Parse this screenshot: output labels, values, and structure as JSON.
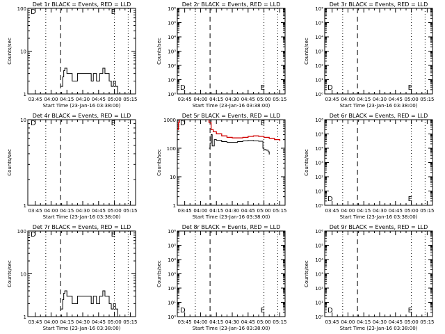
{
  "figure": {
    "xlabel": "Start Time (23-Jan-16 03:38:00)",
    "ylabel": "Counts/sec",
    "x_ticks": [
      "03:45",
      "04:00",
      "04:15",
      "04:30",
      "04:45",
      "05:00",
      "05:15"
    ],
    "marker_d": "D",
    "marker_e": "E",
    "line_colors": {
      "events": "#000000",
      "lld": "#d00000"
    }
  },
  "chart_data": [
    {
      "title": "Det 1r BLACK = Events, RED = LLD",
      "type": "line",
      "scale": "log",
      "ylim": [
        1,
        100
      ],
      "y_ticks": [
        "1",
        "10",
        "100"
      ],
      "y_tick_values": [
        1,
        10,
        100
      ],
      "dotted_x": [
        "03:55",
        "05:00",
        "05:13"
      ],
      "dashed_x": [
        "04:09"
      ],
      "series": [
        {
          "role": "events",
          "color": "#000000",
          "x": [
            "04:09",
            "04:11",
            "04:12",
            "04:13",
            "04:15",
            "04:18",
            "04:20",
            "04:25",
            "04:30",
            "04:35",
            "04:38",
            "04:40",
            "04:43",
            "04:46",
            "04:47",
            "04:49",
            "04:51",
            "04:53",
            "04:55",
            "04:57",
            "04:59",
            "05:01",
            "05:03"
          ],
          "y": [
            1.5,
            2.5,
            3.5,
            4,
            3,
            3,
            2,
            3,
            3,
            3,
            2,
            3,
            2,
            3,
            3,
            4,
            3,
            3,
            2,
            1.5,
            2,
            1.5,
            1
          ]
        }
      ]
    },
    {
      "title": "Det 2r BLACK = Events, RED = LLD",
      "type": "line",
      "scale": "log",
      "ylim": [
        1,
        1000000
      ],
      "y_ticks": [
        "10⁰",
        "10¹",
        "10²",
        "10³",
        "10⁴",
        "10⁵",
        "10⁶"
      ],
      "y_tick_values": [
        1,
        10,
        100,
        1000,
        10000,
        100000,
        1000000
      ],
      "dotted_x": [
        "03:55",
        "05:00",
        "05:13"
      ],
      "dashed_x": [
        "04:09"
      ],
      "series": []
    },
    {
      "title": "Det 3r BLACK = Events, RED = LLD",
      "type": "line",
      "scale": "log",
      "ylim": [
        1,
        1000000
      ],
      "y_ticks": [
        "10⁰",
        "10¹",
        "10²",
        "10³",
        "10⁴",
        "10⁵",
        "10⁶"
      ],
      "y_tick_values": [
        1,
        10,
        100,
        1000,
        10000,
        100000,
        1000000
      ],
      "dotted_x": [
        "03:55",
        "05:00",
        "05:13"
      ],
      "dashed_x": [
        "04:09"
      ],
      "series": []
    },
    {
      "title": "Det 4r BLACK = Events, RED = LLD",
      "type": "line",
      "scale": "log",
      "ylim": [
        1,
        10
      ],
      "y_ticks": [
        "1",
        "10"
      ],
      "y_tick_values": [
        1,
        10
      ],
      "dotted_x": [
        "03:55",
        "05:00",
        "05:13"
      ],
      "dashed_x": [
        "04:09"
      ],
      "series": []
    },
    {
      "title": "Det 5r BLACK = Events, RED = LLD",
      "type": "line",
      "scale": "log",
      "ylim": [
        1,
        1000
      ],
      "y_ticks": [
        "1",
        "10",
        "100",
        "1000"
      ],
      "y_tick_values": [
        1,
        10,
        100,
        1000
      ],
      "dotted_x": [
        "03:55",
        "05:00",
        "05:13"
      ],
      "dashed_x": [
        "04:09"
      ],
      "series": [
        {
          "role": "lld",
          "color": "#d00000",
          "x": [
            "03:38",
            "03:39",
            "03:40"
          ],
          "y": [
            450,
            800,
            1000
          ]
        },
        {
          "role": "lld",
          "color": "#d00000",
          "x": [
            "04:07",
            "04:08",
            "04:10",
            "04:12",
            "04:15",
            "04:20",
            "04:25",
            "04:30",
            "04:35",
            "04:40",
            "04:45",
            "04:50",
            "04:55",
            "05:00",
            "05:05",
            "05:10",
            "05:15"
          ],
          "y": [
            1000,
            800,
            450,
            380,
            320,
            270,
            240,
            230,
            230,
            240,
            260,
            270,
            260,
            240,
            220,
            200,
            180
          ]
        },
        {
          "role": "events",
          "color": "#000000",
          "x": [
            "04:08",
            "04:09",
            "04:10",
            "04:11",
            "04:13",
            "04:15",
            "04:20",
            "04:25",
            "04:30",
            "04:35",
            "04:40",
            "04:45",
            "04:50",
            "04:55",
            "04:58",
            "04:59",
            "05:00",
            "05:02",
            "05:04",
            "05:05"
          ],
          "y": [
            100,
            150,
            300,
            120,
            200,
            190,
            170,
            160,
            160,
            170,
            180,
            185,
            180,
            175,
            175,
            100,
            90,
            85,
            75,
            60
          ]
        }
      ]
    },
    {
      "title": "Det 6r BLACK = Events, RED = LLD",
      "type": "line",
      "scale": "log",
      "ylim": [
        1,
        1000000
      ],
      "y_ticks": [
        "10⁰",
        "10¹",
        "10²",
        "10³",
        "10⁴",
        "10⁵",
        "10⁶"
      ],
      "y_tick_values": [
        1,
        10,
        100,
        1000,
        10000,
        100000,
        1000000
      ],
      "dotted_x": [
        "03:55",
        "05:00",
        "05:13"
      ],
      "dashed_x": [
        "04:09"
      ],
      "series": []
    },
    {
      "title": "Det 7r BLACK = Events, RED = LLD",
      "type": "line",
      "scale": "log",
      "ylim": [
        1,
        100
      ],
      "y_ticks": [
        "1",
        "10",
        "100"
      ],
      "y_tick_values": [
        1,
        10,
        100
      ],
      "dotted_x": [
        "03:55",
        "05:00",
        "05:13"
      ],
      "dashed_x": [
        "04:09"
      ],
      "series": [
        {
          "role": "events",
          "color": "#000000",
          "x": [
            "04:09",
            "04:11",
            "04:12",
            "04:13",
            "04:15",
            "04:18",
            "04:20",
            "04:25",
            "04:30",
            "04:35",
            "04:38",
            "04:40",
            "04:43",
            "04:46",
            "04:47",
            "04:49",
            "04:51",
            "04:53",
            "04:55",
            "04:57",
            "04:59",
            "05:01",
            "05:03"
          ],
          "y": [
            1.5,
            2.5,
            3.5,
            4,
            3,
            3,
            2,
            3,
            3,
            3,
            2,
            3,
            2,
            3,
            3,
            4,
            3,
            3,
            2,
            1.5,
            2,
            1.5,
            1
          ]
        }
      ]
    },
    {
      "title": "Det 8r BLACK = Events, RED = LLD",
      "type": "line",
      "scale": "log",
      "ylim": [
        1,
        1000000
      ],
      "y_ticks": [
        "10⁰",
        "10¹",
        "10²",
        "10³",
        "10⁴",
        "10⁵",
        "10⁶"
      ],
      "y_tick_values": [
        1,
        10,
        100,
        1000,
        10000,
        100000,
        1000000
      ],
      "dotted_x": [
        "03:55",
        "05:00",
        "05:13"
      ],
      "dashed_x": [
        "04:09"
      ],
      "series": []
    },
    {
      "title": "Det 9r BLACK = Events, RED = LLD",
      "type": "line",
      "scale": "log",
      "ylim": [
        1,
        1000000
      ],
      "y_ticks": [
        "10⁰",
        "10¹",
        "10²",
        "10³",
        "10⁴",
        "10⁵",
        "10⁶"
      ],
      "y_tick_values": [
        1,
        10,
        100,
        1000,
        10000,
        100000,
        1000000
      ],
      "dotted_x": [
        "03:55",
        "05:00",
        "05:13"
      ],
      "dashed_x": [
        "04:09"
      ],
      "series": []
    }
  ]
}
